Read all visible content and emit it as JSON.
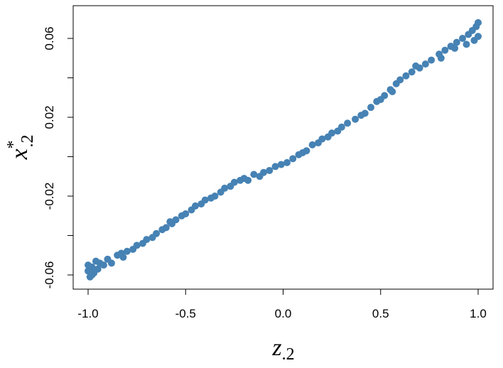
{
  "chart_data": {
    "type": "scatter",
    "xlabel": {
      "text": "z",
      "subscript": ".2"
    },
    "ylabel": {
      "text": "x",
      "superscript": "*",
      "subscript": ".2"
    },
    "color": "#4682b4",
    "x": [
      -1.0,
      -1.0,
      -0.99,
      -0.98,
      -0.97,
      -0.96,
      -0.95,
      -0.92,
      -0.9,
      -0.88,
      -0.85,
      -0.82,
      -0.8,
      -0.77,
      -0.75,
      -0.72,
      -0.7,
      -0.67,
      -0.65,
      -0.62,
      -0.6,
      -0.57,
      -0.55,
      -0.52,
      -0.5,
      -0.47,
      -0.45,
      -0.42,
      -0.4,
      -0.37,
      -0.35,
      -0.32,
      -0.3,
      -0.27,
      -0.25,
      -0.22,
      -0.2,
      -0.18,
      -0.15,
      -0.12,
      -0.1,
      -0.07,
      -0.04,
      -0.01,
      0.02,
      0.05,
      0.08,
      0.1,
      0.12,
      0.15,
      0.18,
      0.2,
      0.23,
      0.25,
      0.28,
      0.3,
      0.33,
      0.37,
      0.4,
      0.42,
      0.45,
      0.48,
      0.5,
      0.52,
      0.55,
      0.58,
      0.6,
      0.63,
      0.66,
      0.7,
      0.73,
      0.76,
      0.8,
      0.83,
      0.86,
      0.89,
      0.92,
      0.95,
      0.97,
      0.99,
      1.0,
      1.0,
      0.98,
      0.94,
      0.88,
      0.81,
      0.68,
      0.56,
      -0.58,
      -0.83,
      -0.94,
      -0.98
    ],
    "values": [
      -0.058,
      -0.055,
      -0.061,
      -0.056,
      -0.059,
      -0.053,
      -0.057,
      -0.055,
      -0.052,
      -0.054,
      -0.05,
      -0.051,
      -0.048,
      -0.047,
      -0.045,
      -0.044,
      -0.042,
      -0.041,
      -0.039,
      -0.037,
      -0.036,
      -0.034,
      -0.032,
      -0.03,
      -0.029,
      -0.027,
      -0.025,
      -0.024,
      -0.022,
      -0.021,
      -0.02,
      -0.018,
      -0.016,
      -0.015,
      -0.013,
      -0.012,
      -0.011,
      -0.012,
      -0.009,
      -0.01,
      -0.008,
      -0.007,
      -0.005,
      -0.004,
      -0.003,
      -0.001,
      0.001,
      0.002,
      0.003,
      0.006,
      0.007,
      0.009,
      0.01,
      0.012,
      0.013,
      0.015,
      0.017,
      0.019,
      0.021,
      0.022,
      0.025,
      0.028,
      0.029,
      0.031,
      0.034,
      0.037,
      0.039,
      0.041,
      0.043,
      0.045,
      0.047,
      0.049,
      0.052,
      0.054,
      0.056,
      0.058,
      0.06,
      0.062,
      0.064,
      0.066,
      0.068,
      0.061,
      0.059,
      0.057,
      0.055,
      0.05,
      0.046,
      0.033,
      -0.033,
      -0.049,
      -0.054,
      -0.06
    ],
    "xlim": [
      -1.0765,
      1.0765
    ],
    "ylim": [
      -0.0672,
      0.0766
    ],
    "xticks": [
      {
        "value": -1,
        "label": "-1.0"
      },
      -0.5,
      {
        "value": 0,
        "label": "0.0"
      },
      0.5,
      {
        "value": 1,
        "label": "1.0"
      }
    ],
    "yticks": [
      -0.06,
      -0.02,
      0.02,
      0.06
    ],
    "yminor_ticks": [
      -0.04,
      0,
      0.04
    ]
  }
}
